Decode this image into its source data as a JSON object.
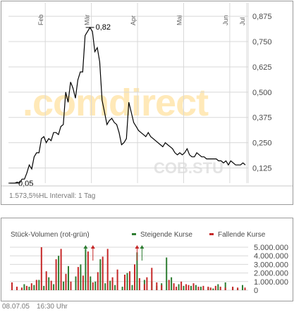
{
  "price_chart": {
    "watermark": ".comdirect",
    "symbol_watermark": "COB.STU",
    "footer": "1.573,5%HL Intervall: 1 Tag",
    "high_label": "0,82",
    "low_label": "0,05"
  },
  "volume_chart": {
    "title": "Stück-Volumen (rot-grün)",
    "legend_up": "Steigende Kurse",
    "legend_down": "Fallende Kurse"
  },
  "timestamp": {
    "date": "08.07.05",
    "time": "16:30 Uhr"
  },
  "colors": {
    "line": "#000000",
    "up": "#2e7d32",
    "down": "#c62828",
    "grid": "#d8d8d8",
    "watermark": "#ffe9b8"
  },
  "chart_data": [
    {
      "type": "line",
      "x_tick_labels": [
        "Feb",
        "Mär",
        "Apr",
        "Mai",
        "Jun",
        "Jul"
      ],
      "y_tick_labels": [
        "0,875",
        "0,750",
        "0,625",
        "0,500",
        "0,375",
        "0,250",
        "0,125"
      ],
      "y_ticks": [
        0.875,
        0.75,
        0.625,
        0.5,
        0.375,
        0.25,
        0.125
      ],
      "ylim": [
        0.05,
        0.9
      ],
      "grid": true,
      "annotations": [
        {
          "text": "0,82",
          "value": 0.82
        },
        {
          "text": "0,05",
          "value": 0.05
        }
      ],
      "values": [
        0.05,
        0.05,
        0.05,
        0.055,
        0.05,
        0.07,
        0.07,
        0.1,
        0.14,
        0.12,
        0.18,
        0.2,
        0.2,
        0.27,
        0.28,
        0.25,
        0.27,
        0.26,
        0.3,
        0.3,
        0.29,
        0.33,
        0.34,
        0.5,
        0.45,
        0.55,
        0.52,
        0.47,
        0.56,
        0.6,
        0.6,
        0.78,
        0.8,
        0.82,
        0.8,
        0.7,
        0.72,
        0.65,
        0.46,
        0.4,
        0.34,
        0.36,
        0.37,
        0.35,
        0.34,
        0.3,
        0.24,
        0.25,
        0.27,
        0.45,
        0.4,
        0.35,
        0.33,
        0.31,
        0.3,
        0.29,
        0.28,
        0.3,
        0.28,
        0.27,
        0.26,
        0.25,
        0.24,
        0.23,
        0.25,
        0.24,
        0.23,
        0.22,
        0.2,
        0.19,
        0.2,
        0.19,
        0.2,
        0.22,
        0.19,
        0.18,
        0.18,
        0.2,
        0.19,
        0.18,
        0.18,
        0.17,
        0.17,
        0.17,
        0.17,
        0.17,
        0.16,
        0.16,
        0.15,
        0.16,
        0.14,
        0.16,
        0.15,
        0.14,
        0.14,
        0.14,
        0.15,
        0.14
      ]
    },
    {
      "type": "bar",
      "y_tick_labels": [
        "5.000.000",
        "4.000.000",
        "3.000.000",
        "2.000.000",
        "1.000.000",
        "0"
      ],
      "y_ticks": [
        5000000,
        4000000,
        3000000,
        2000000,
        1000000,
        0
      ],
      "ylim": [
        0,
        5000000
      ],
      "series": [
        {
          "name": "Steigende Kurse",
          "values": [
            0,
            0,
            0,
            0,
            0,
            700000,
            0,
            400000,
            0,
            600000,
            0,
            1200000,
            0,
            500000,
            0,
            1500000,
            0,
            700000,
            0,
            4000000,
            0,
            1000000,
            0,
            2800000,
            0,
            0,
            1600000,
            0,
            3000000,
            0,
            4800000,
            0,
            1600000,
            0,
            1000000,
            0,
            3600000,
            0,
            800000,
            0,
            1100000,
            0,
            600000,
            0,
            0,
            400000,
            0,
            2000000,
            0,
            600000,
            0,
            4400000,
            0,
            0,
            1200000,
            0,
            0,
            1000000,
            0,
            500000,
            0,
            800000,
            0,
            3800000,
            0,
            1500000,
            0,
            0,
            700000,
            0,
            500000,
            0,
            0,
            500000,
            0,
            600000,
            0,
            400000,
            0,
            0,
            300000,
            0,
            200000,
            0,
            700000,
            0,
            0,
            900000,
            0,
            0,
            300000,
            0,
            200000,
            0,
            600000,
            0
          ]
        },
        {
          "name": "Fallende Kurse",
          "values": [
            900000,
            0,
            400000,
            0,
            300000,
            0,
            500000,
            0,
            800000,
            0,
            1200000,
            0,
            5000000,
            0,
            2200000,
            0,
            1100000,
            0,
            3600000,
            0,
            4800000,
            0,
            1900000,
            0,
            1000000,
            0,
            0,
            2700000,
            0,
            1700000,
            0,
            4500000,
            0,
            900000,
            0,
            2100000,
            0,
            3900000,
            0,
            4800000,
            0,
            1500000,
            0,
            2400000,
            0,
            0,
            1800000,
            0,
            2200000,
            0,
            3000000,
            0,
            1400000,
            0,
            700000,
            1500000,
            0,
            2600000,
            0,
            900000,
            0,
            600000,
            0,
            0,
            1200000,
            0,
            800000,
            400000,
            0,
            1000000,
            0,
            700000,
            600000,
            0,
            800000,
            0,
            400000,
            0,
            500000,
            0,
            400000,
            300000,
            0,
            500000,
            0,
            400000,
            0,
            300000,
            0,
            0,
            400000,
            0,
            300000,
            0,
            0,
            300000
          ]
        }
      ]
    }
  ]
}
